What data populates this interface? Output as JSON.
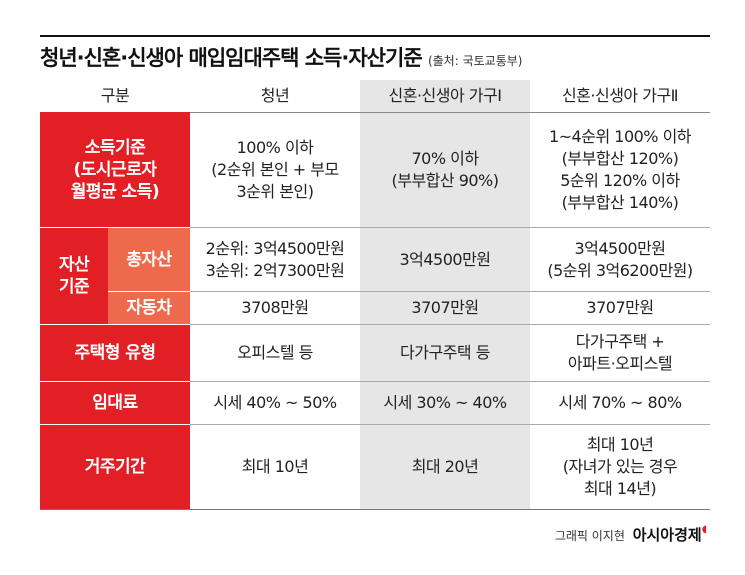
{
  "header": {
    "title": "청년·신혼·신생아 매입임대주택 소득·자산기준",
    "source": "(출처: 국토교통부)"
  },
  "table": {
    "columns": [
      "구분",
      "청년",
      "신혼·신생아 가구Ⅰ",
      "신혼·신생아 가구Ⅱ"
    ],
    "rows": [
      {
        "label": [
          "소득기준",
          "(도시근로자",
          "월평균 소득)"
        ],
        "cells": [
          [
            "100% 이하",
            "(2순위 본인 + 부모",
            "3순위 본인)"
          ],
          [
            "70% 이하",
            "(부부합산 90%)"
          ],
          [
            "1~4순위 100% 이하",
            "(부부합산 120%)",
            "5순위 120% 이하",
            "(부부합산 140%)"
          ]
        ]
      },
      {
        "group": [
          "자산",
          "기준"
        ],
        "label": [
          "총자산"
        ],
        "cells": [
          [
            "2순위: 3억4500만원",
            "3순위: 2억7300만원"
          ],
          [
            "3억4500만원"
          ],
          [
            "3억4500만원",
            "(5순위 3억6200만원)"
          ]
        ]
      },
      {
        "label": [
          "자동차"
        ],
        "cells": [
          [
            "3708만원"
          ],
          [
            "3707만원"
          ],
          [
            "3707만원"
          ]
        ]
      },
      {
        "label": [
          "주택형 유형"
        ],
        "cells": [
          [
            "오피스텔 등"
          ],
          [
            "다가구주택 등"
          ],
          [
            "다가구주택 +",
            "아파트·오피스텔"
          ]
        ]
      },
      {
        "label": [
          "임대료"
        ],
        "cells": [
          [
            "시세 40% ~ 50%"
          ],
          [
            "시세 30% ~ 40%"
          ],
          [
            "시세 70% ~ 80%"
          ]
        ]
      },
      {
        "label": [
          "거주기간"
        ],
        "cells": [
          [
            "최대 10년"
          ],
          [
            "최대 20년"
          ],
          [
            "최대 10년",
            "(자녀가 있는 경우",
            "최대 14년)"
          ]
        ]
      }
    ]
  },
  "credit": {
    "author": "그래픽 이지현",
    "brand": "아시아경제"
  }
}
